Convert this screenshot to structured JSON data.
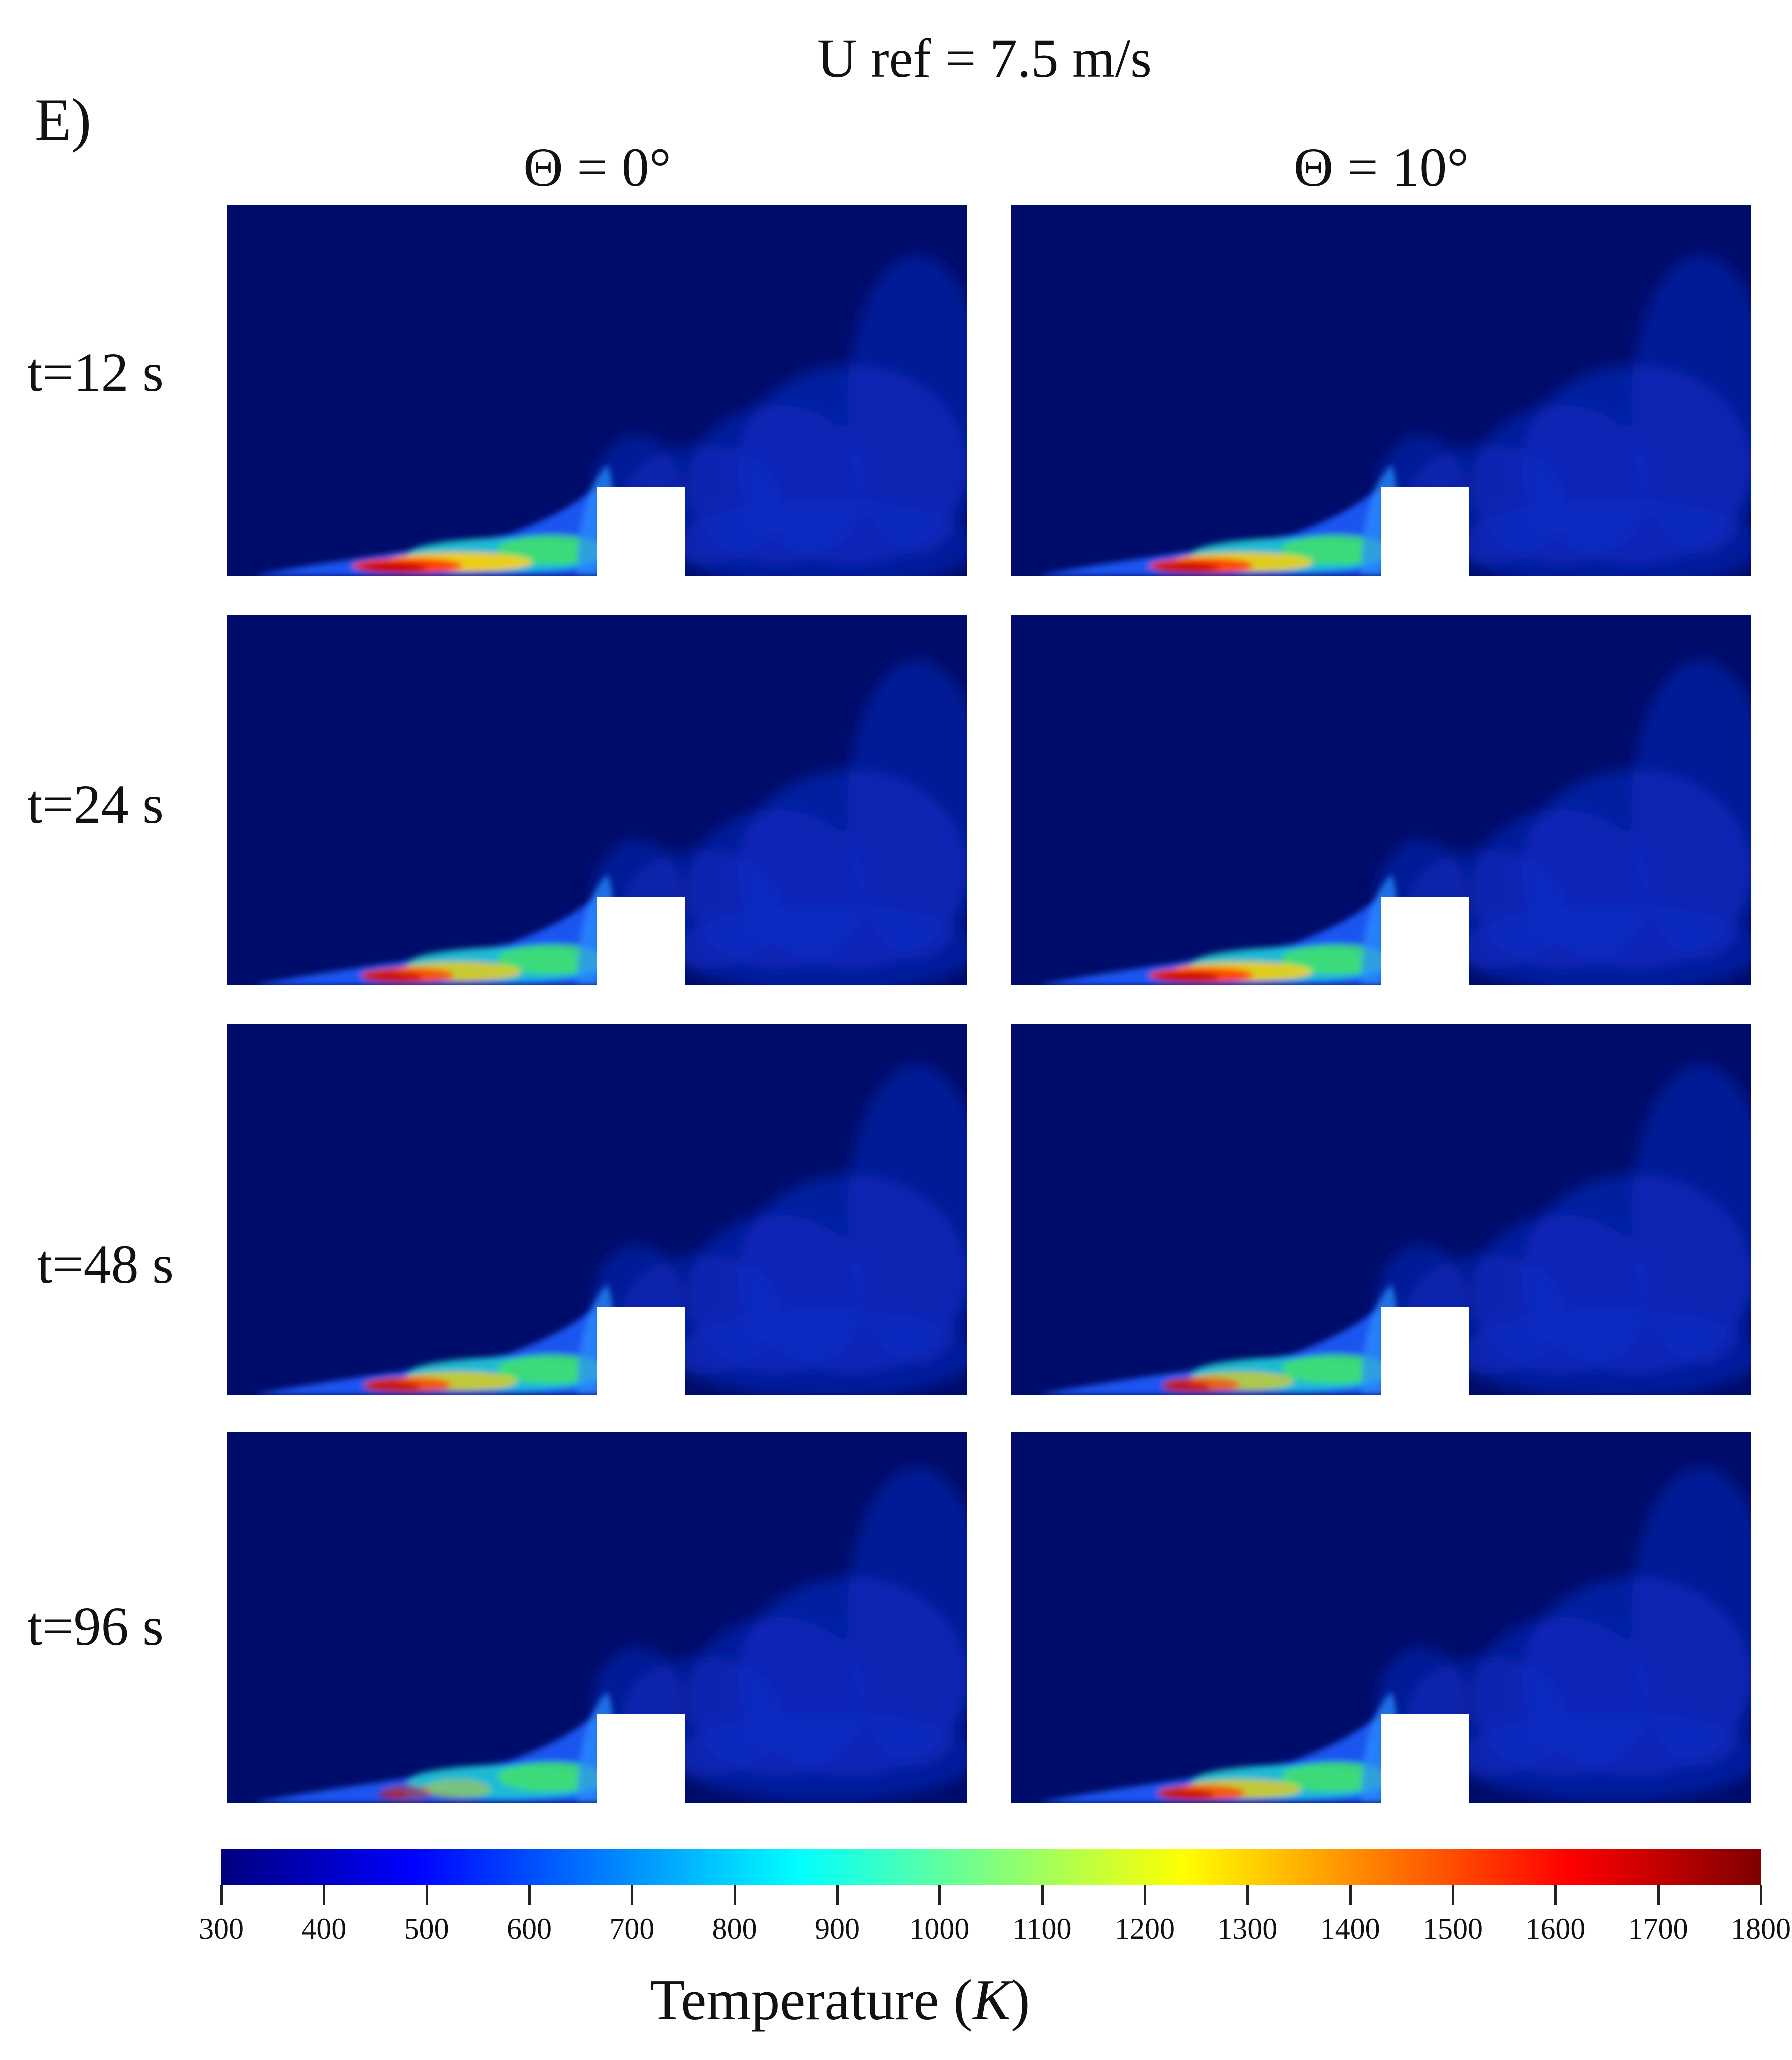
{
  "figure": {
    "panel_letter": "E)",
    "title": "U ref = 7.5 m/s",
    "columns": [
      "Θ = 0°",
      "Θ = 10°"
    ],
    "rows": [
      "t=12 s",
      "t=24 s",
      "t=48 s",
      "t=96 s"
    ]
  },
  "colors": {
    "background_field": "#000c6a",
    "obstacle": "#ffffff",
    "colormap": [
      "#00007f",
      "#0000ff",
      "#007fff",
      "#00ffff",
      "#7fff7f",
      "#ffff00",
      "#ff7f00",
      "#ff0000",
      "#7f0000"
    ]
  },
  "colorbar": {
    "label_prefix": "Temperature (",
    "label_unit": "K",
    "label_suffix": ")",
    "min": 300,
    "max": 1800,
    "ticks": [
      "300",
      "400",
      "500",
      "600",
      "700",
      "800",
      "900",
      "1000",
      "1100",
      "1200",
      "1300",
      "1400",
      "1500",
      "1600",
      "1700",
      "1800"
    ]
  }
}
